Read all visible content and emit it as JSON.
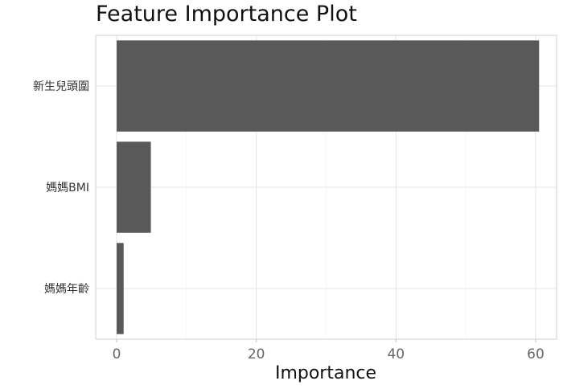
{
  "chart_data": {
    "type": "bar",
    "orientation": "horizontal",
    "title": "Feature Importance Plot",
    "xlabel": "Importance",
    "ylabel": "",
    "categories": [
      "新生兒頭圍",
      "媽媽BMI",
      "媽媽年齡"
    ],
    "values": [
      60.5,
      4.9,
      1.0
    ],
    "xlim": [
      -3,
      63
    ],
    "xticks": [
      0,
      20,
      40,
      60
    ],
    "grid": true,
    "legend": "none",
    "bar_color": "#595959"
  }
}
